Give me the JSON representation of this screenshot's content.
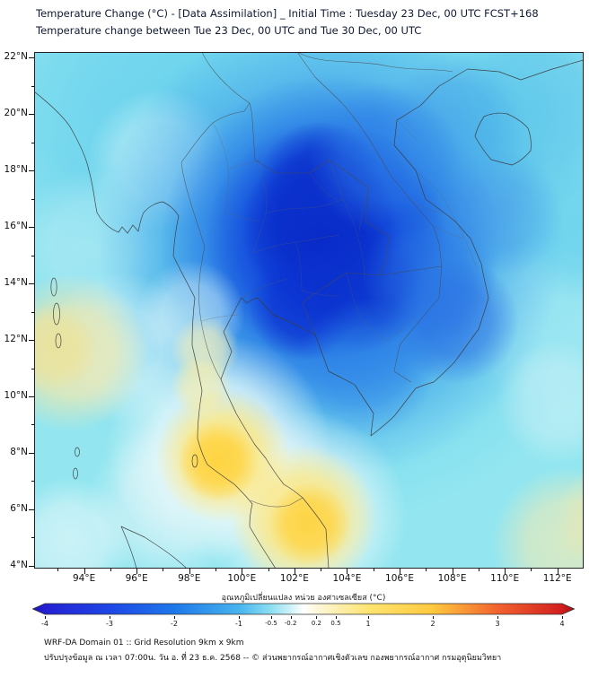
{
  "header": {
    "title_line1": "Temperature Change (°C) - [Data Assimilation] _ Initial Time : Tuesday 23 Dec, 00 UTC FCST+168",
    "title_line2": "Temperature change between Tue 23 Dec, 00 UTC and Tue 30 Dec, 00 UTC"
  },
  "chart_data": {
    "type": "heatmap",
    "title": "Temperature Change (°C) - [Data Assimilation]",
    "subtitle": "Temperature change between Tue 23 Dec, 00 UTC and Tue 30 Dec, 00 UTC",
    "axes": {
      "lat_ticks": [
        {
          "value": 22,
          "label": "22°N"
        },
        {
          "value": 20,
          "label": "20°N"
        },
        {
          "value": 18,
          "label": "18°N"
        },
        {
          "value": 16,
          "label": "16°N"
        },
        {
          "value": 14,
          "label": "14°N"
        },
        {
          "value": 12,
          "label": "12°N"
        },
        {
          "value": 10,
          "label": "10°N"
        },
        {
          "value": 8,
          "label": "8°N"
        },
        {
          "value": 6,
          "label": "6°N"
        },
        {
          "value": 4,
          "label": "4°N"
        }
      ],
      "lon_ticks": [
        {
          "value": 94,
          "label": "94°E"
        },
        {
          "value": 96,
          "label": "96°E"
        },
        {
          "value": 98,
          "label": "98°E"
        },
        {
          "value": 100,
          "label": "100°E"
        },
        {
          "value": 102,
          "label": "102°E"
        },
        {
          "value": 104,
          "label": "104°E"
        },
        {
          "value": 106,
          "label": "106°E"
        },
        {
          "value": 108,
          "label": "108°E"
        },
        {
          "value": 110,
          "label": "110°E"
        },
        {
          "value": 112,
          "label": "112°E"
        }
      ],
      "lat_range": [
        3.9,
        22.2
      ],
      "lon_range": [
        92.1,
        113.0
      ]
    },
    "colorbar": {
      "label": "อุณหภูมิเปลี่ยนแปลง หน่วย องศาเซลเซียส (°C)",
      "units": "°C",
      "range": [
        -4,
        4
      ],
      "ticks": [
        -4,
        -3,
        -2,
        -1,
        -0.5,
        -0.2,
        0.2,
        0.5,
        1,
        2,
        3,
        4
      ],
      "stops": [
        {
          "pos": 0.0,
          "color": "#1a12b8"
        },
        {
          "pos": 0.023,
          "color": "#2420d2"
        },
        {
          "pos": 0.142,
          "color": "#1e46e6"
        },
        {
          "pos": 0.262,
          "color": "#1e78ea"
        },
        {
          "pos": 0.381,
          "color": "#46b4ee"
        },
        {
          "pos": 0.44,
          "color": "#8ddff2"
        },
        {
          "pos": 0.476,
          "color": "#cdf3f8"
        },
        {
          "pos": 0.5,
          "color": "#ffffff"
        },
        {
          "pos": 0.524,
          "color": "#fdf8dc"
        },
        {
          "pos": 0.56,
          "color": "#fcf0b2"
        },
        {
          "pos": 0.619,
          "color": "#ffe470"
        },
        {
          "pos": 0.738,
          "color": "#ffc93e"
        },
        {
          "pos": 0.858,
          "color": "#f2622e"
        },
        {
          "pos": 0.977,
          "color": "#d21e1e"
        },
        {
          "pos": 1.0,
          "color": "#a00f0f"
        }
      ]
    },
    "features": [
      {
        "region": "Northeast Thailand, central-southern Laos and northern Cambodia (≈101-106°E, 12-18°N)",
        "temp_change_c": -4
      },
      {
        "region": "South-central Vietnam coast (≈107-109°E, 11-13°N)",
        "temp_change_c": -2.5
      },
      {
        "region": "Most of the domain - light cooling (cyan)",
        "temp_change_c": -1
      },
      {
        "region": "Gulf of Tonkin / Hainan area",
        "temp_change_c": -1.5
      },
      {
        "region": "Southern Thailand peninsula (≈98-100°E, 7-10°N)",
        "temp_change_c": 1.5
      },
      {
        "region": "Lower Gulf of Thailand, east of Malay Peninsula (≈101-103°E, 4.5-7°N)",
        "temp_change_c": 1.5
      },
      {
        "region": "Western edge of domain (≈92-94°E, 9.5-13.5°N)",
        "temp_change_c": 0.5
      },
      {
        "region": "South-eastern corner (≈110-113°E, 4-7°N)",
        "temp_change_c": 0.3
      }
    ]
  },
  "footer": {
    "line1": "WRF-DA Domain 01 :: Grid Resolution 9km x 9km",
    "line2": "ปรับปรุงข้อมูล ณ เวลา 07:00น. วัน อ. ที่ 23 ธ.ค. 2568 -- © ส่วนพยากรณ์อากาศเชิงตัวเลข กองพยากรณ์อากาศ กรมอุตุนิยมวิทยา"
  }
}
